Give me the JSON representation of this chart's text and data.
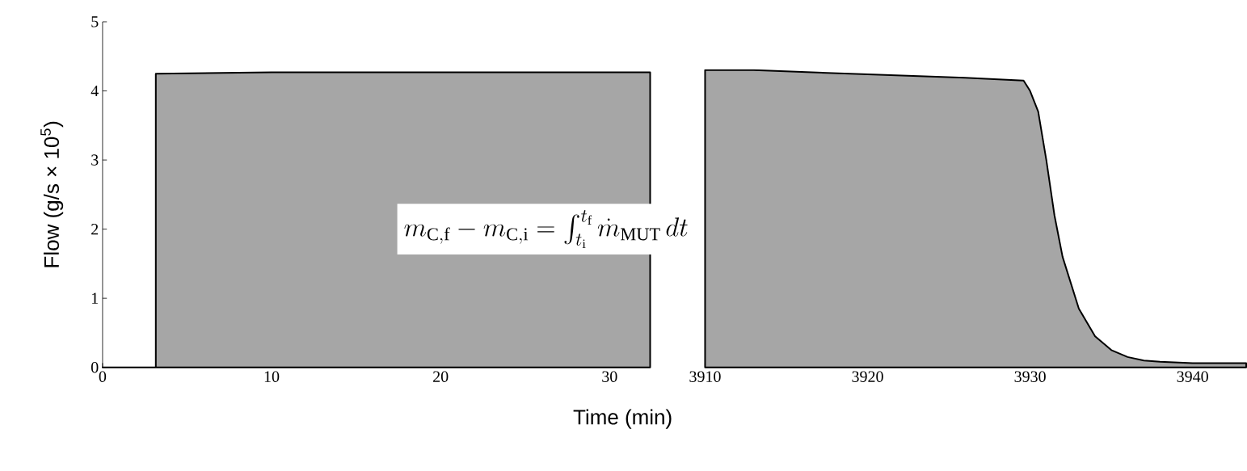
{
  "chart_data": [
    {
      "type": "area",
      "xlabel": "Time (min)",
      "ylabel": "Flow (g/s × 10$^{5}$)",
      "annotations": [
        "m_{\\mathrm{C,f}} - m_{\\mathrm{C,i}} = \\int_{t_\\mathrm{i}}^{t_\\mathrm{f}} \\dot{m}_{\\mathrm{MUT}}\\,dt"
      ],
      "xlim": [
        0,
        32.4
      ],
      "xticks": [
        0,
        10,
        20,
        30
      ],
      "ylim": [
        0,
        5
      ],
      "yticks": [
        0,
        1,
        2,
        3,
        4,
        5
      ],
      "series": [
        {
          "color": "#a6a6a6",
          "x": [
            0,
            3.15,
            3.15,
            10,
            20,
            30,
            32.4
          ],
          "values": [
            0,
            0,
            4.25,
            4.27,
            4.27,
            4.27,
            4.27
          ]
        }
      ]
    },
    {
      "type": "area",
      "xlim": [
        3910,
        3943.3
      ],
      "xticks": [
        3910,
        3920,
        3930,
        3940
      ],
      "ylim": [
        0,
        5
      ],
      "tick_labels": "x",
      "series": [
        {
          "color": "#a6a6a6",
          "x": [
            3910,
            3913,
            3920,
            3926,
            3929.6,
            3930,
            3930.5,
            3931,
            3931.5,
            3932,
            3933,
            3934,
            3935,
            3936,
            3937,
            3938,
            3940,
            3943.3
          ],
          "values": [
            4.3,
            4.3,
            4.24,
            4.19,
            4.15,
            4.0,
            3.7,
            3.0,
            2.2,
            1.6,
            0.85,
            0.45,
            0.25,
            0.15,
            0.1,
            0.08,
            0.06,
            0.06
          ]
        }
      ]
    }
  ]
}
